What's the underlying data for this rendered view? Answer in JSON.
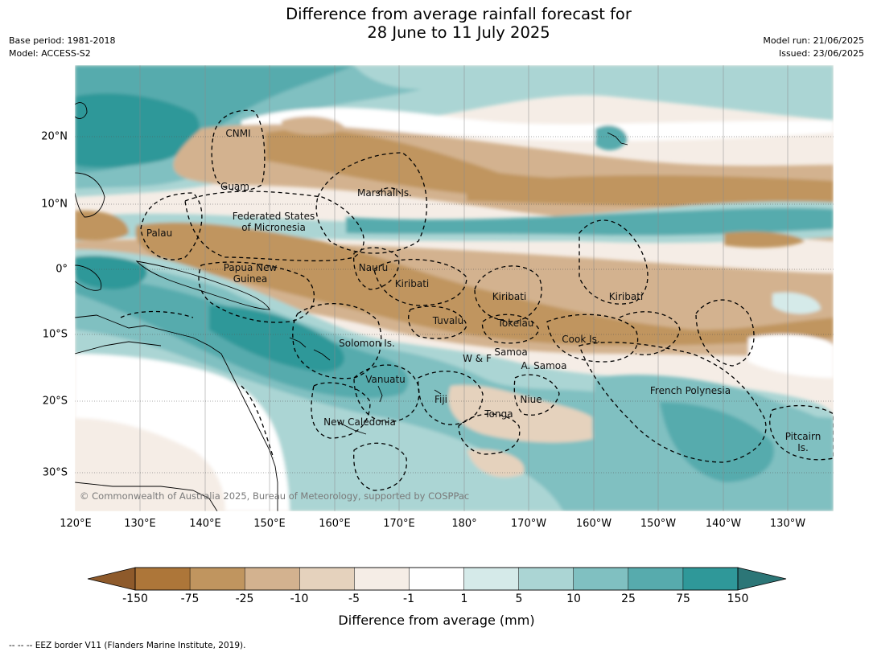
{
  "title_line1": "Difference from average rainfall forecast for",
  "title_line2": "28 June to 11 July 2025",
  "meta_left": {
    "base_period": "Base period: 1981-2018",
    "model": "Model: ACCESS-S2"
  },
  "meta_right": {
    "model_run": "Model run: 21/06/2025",
    "issued": "Issued: 23/06/2025"
  },
  "copyright": "© Commonwealth of Australia 2025, Bureau of Meteorology, supported by COSPPac",
  "lon_labels": [
    "120°E",
    "130°E",
    "140°E",
    "150°E",
    "160°E",
    "170°E",
    "180°",
    "170°W",
    "160°W",
    "150°W",
    "140°W",
    "130°W"
  ],
  "lat_labels": [
    "20°N",
    "10°N",
    "0°",
    "10°S",
    "20°S",
    "30°S"
  ],
  "places": {
    "cnmi": "CNMI",
    "guam": "Guam",
    "marshall": "Marshall Is.",
    "palau": "Palau",
    "fsm_line1": "Federated States",
    "fsm_line2": "of Micronesia",
    "png_line1": "Papua New",
    "png_line2": "Guinea",
    "nauru": "Nauru",
    "kiribati_w": "Kiribati",
    "kiribati_c": "Kiribati",
    "kiribati_e": "Kiribati",
    "tuvalu": "Tuvalu",
    "tokelau": "Tokelau",
    "cook": "Cook Is.",
    "solomon": "Solomon Is.",
    "samoa": "Samoa",
    "wf": "W & F",
    "asamoa": "A. Samoa",
    "vanuatu": "Vanuatu",
    "fiji": "Fiji",
    "niue": "Niue",
    "tonga": "Tonga",
    "french_polynesia": "French Polynesia",
    "new_caledonia": "New Caledonia",
    "pitcairn_line1": "Pitcairn",
    "pitcairn_line2": "Is."
  },
  "colorbar": {
    "levels": [
      "-150",
      "-75",
      "-25",
      "-10",
      "-5",
      "-1",
      "1",
      "5",
      "10",
      "25",
      "75",
      "150"
    ],
    "colors": [
      "#ad7639",
      "#c0955f",
      "#d3b28f",
      "#e5d2bd",
      "#f5ede6",
      "#ffffff",
      "#d5eae9",
      "#abd5d4",
      "#80c0c1",
      "#57abad",
      "#2f9899"
    ],
    "low_extend_color": "#8e5a2b",
    "high_extend_color": "#2c7677",
    "title": "Difference from average (mm)"
  },
  "footnote": "--  --  -- EEZ border V11 (Flanders Marine Institute, 2019)."
}
